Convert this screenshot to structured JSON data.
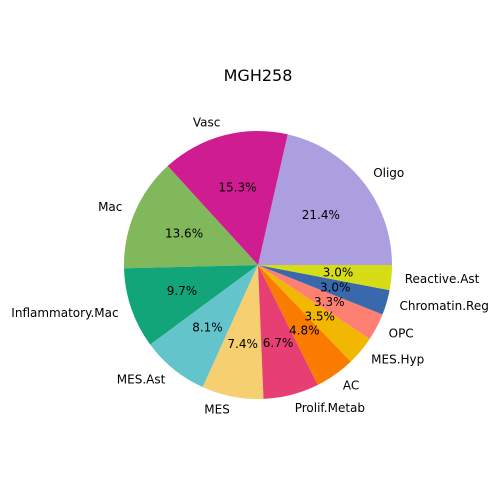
{
  "chart_data": {
    "type": "pie",
    "title": "MGH258",
    "slices": [
      {
        "label": "Oligo",
        "value": 21.4,
        "display": "21.4%",
        "color": "#ab9fe0"
      },
      {
        "label": "Vasc",
        "value": 15.3,
        "display": "15.3%",
        "color": "#cf1c90"
      },
      {
        "label": "Mac",
        "value": 13.6,
        "display": "13.6%",
        "color": "#80b85b"
      },
      {
        "label": "Inflammatory.Mac",
        "value": 9.7,
        "display": "9.7%",
        "color": "#11a579"
      },
      {
        "label": "MES.Ast",
        "value": 8.1,
        "display": "8.1%",
        "color": "#63c5cb"
      },
      {
        "label": "MES",
        "value": 7.4,
        "display": "7.4%",
        "color": "#f6cf71"
      },
      {
        "label": "Prolif.Metab",
        "value": 6.7,
        "display": "6.7%",
        "color": "#e73f74"
      },
      {
        "label": "AC",
        "value": 4.8,
        "display": "4.8%",
        "color": "#f97b00"
      },
      {
        "label": "MES.Hyp",
        "value": 3.5,
        "display": "3.5%",
        "color": "#f2b701"
      },
      {
        "label": "OPC",
        "value": 3.3,
        "display": "3.3%",
        "color": "#fe8072"
      },
      {
        "label": "Chromatin.Reg",
        "value": 3.0,
        "display": "3.0%",
        "color": "#3969ac"
      },
      {
        "label": "Reactive.Ast",
        "value": 3.0,
        "display": "3.0%",
        "color": "#d6dc16"
      }
    ]
  }
}
